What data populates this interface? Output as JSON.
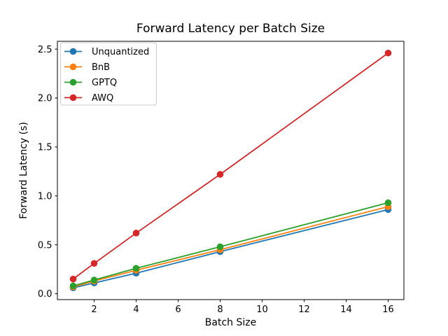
{
  "chart_data": {
    "type": "line",
    "title": "Forward Latency per Batch Size",
    "xlabel": "Batch Size",
    "ylabel": "Forward Latency (s)",
    "x": [
      1,
      2,
      4,
      8,
      16
    ],
    "series": [
      {
        "name": "Unquantized",
        "color": "#1f77b4",
        "values": [
          0.06,
          0.11,
          0.21,
          0.43,
          0.86
        ]
      },
      {
        "name": "BnB",
        "color": "#ff7f0e",
        "values": [
          0.07,
          0.13,
          0.24,
          0.45,
          0.89
        ]
      },
      {
        "name": "GPTQ",
        "color": "#2ca02c",
        "values": [
          0.08,
          0.14,
          0.26,
          0.48,
          0.93
        ]
      },
      {
        "name": "AWQ",
        "color": "#d62728",
        "values": [
          0.15,
          0.31,
          0.62,
          1.22,
          2.46
        ]
      }
    ],
    "xticks": [
      2,
      4,
      6,
      8,
      10,
      12,
      14,
      16
    ],
    "yticks": [
      0.0,
      0.5,
      1.0,
      1.5,
      2.0,
      2.5
    ],
    "xlim": [
      0.25,
      16.75
    ],
    "ylim": [
      -0.06,
      2.58
    ],
    "grid": false,
    "legend_position": "upper left",
    "colors": {
      "background": "#ffffff",
      "spine": "#000000",
      "legend_border": "#cccccc",
      "legend_background": "#ffffff"
    }
  }
}
